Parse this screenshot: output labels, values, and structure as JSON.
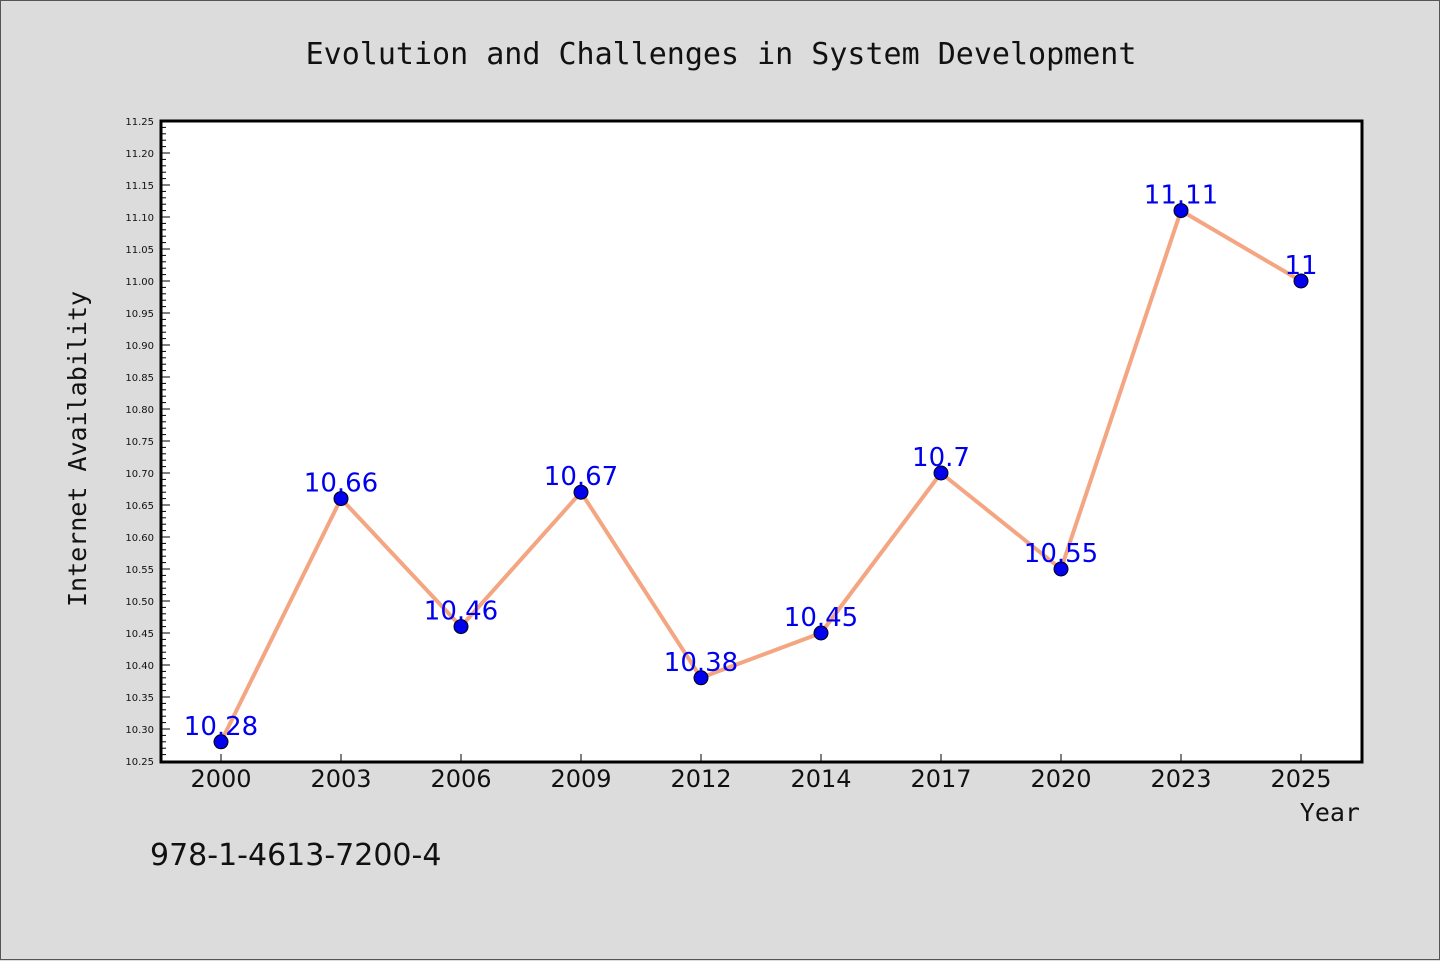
{
  "chart_data": {
    "type": "line",
    "title": "Evolution and Challenges in System Development",
    "xlabel": "Year",
    "ylabel": "Internet Availability",
    "categories": [
      "2000",
      "2003",
      "2006",
      "2009",
      "2012",
      "2014",
      "2017",
      "2020",
      "2023",
      "2025"
    ],
    "series": [
      {
        "values": [
          10.28,
          10.66,
          10.46,
          10.67,
          10.38,
          10.45,
          10.7,
          10.55,
          11.11,
          11
        ],
        "data_labels": [
          "10.28",
          "10.66",
          "10.46",
          "10.67",
          "10.38",
          "10.45",
          "10.7",
          "10.55",
          "11.11",
          "11"
        ],
        "line_color": "#f4a582",
        "marker_color": "#0000ee",
        "label_color": "#0000ee"
      }
    ],
    "ylim": [
      10.25,
      11.25
    ],
    "yticks": [
      "10.25",
      "10.30",
      "10.35",
      "10.40",
      "10.45",
      "10.50",
      "10.55",
      "10.60",
      "10.65",
      "10.70",
      "10.75",
      "10.80",
      "10.85",
      "10.90",
      "10.95",
      "11.00",
      "11.05",
      "11.10",
      "11.15",
      "11.20",
      "11.25"
    ],
    "grid": false,
    "legend": "none"
  },
  "footer_text": "978-1-4613-7200-4"
}
